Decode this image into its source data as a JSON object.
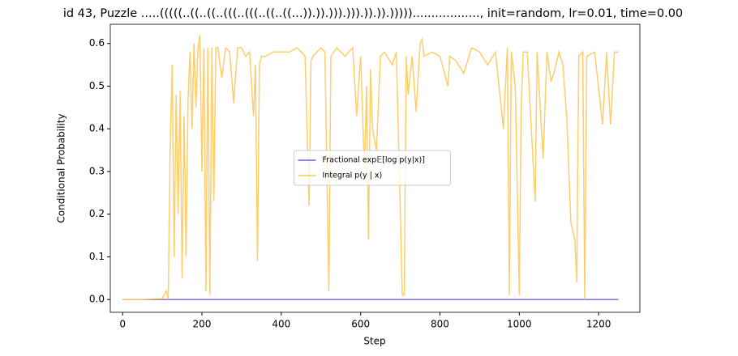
{
  "chart_data": {
    "type": "line",
    "title": "id 43, Puzzle .....(((((..((..((..(((..(((..((..((...)).)).))).))).)).)).))))).................., init=random, lr=0.01, time=0.00",
    "x_label": "Step",
    "y_label": "Conditional Probability",
    "xlim": [
      -31,
      1304
    ],
    "ylim": [
      -0.03,
      0.645
    ],
    "xticks": [
      0,
      200,
      400,
      600,
      800,
      1000,
      1200
    ],
    "yticks": [
      {
        "value": 0,
        "label": "0.0"
      },
      0.1,
      0.2,
      0.3,
      0.4,
      0.5,
      0.6
    ],
    "legend": "center",
    "series": [
      {
        "name": "Fractional exp𝔼[log p(y|x)]",
        "color": "#6464f0",
        "x": [
          0,
          1250
        ],
        "values": [
          0,
          0
        ]
      },
      {
        "name": "Integral p(y | x)",
        "color": "#ffc85a",
        "x": [
          0,
          50,
          100,
          110,
          115,
          120,
          125,
          130,
          135,
          140,
          145,
          150,
          155,
          160,
          165,
          170,
          175,
          180,
          185,
          190,
          195,
          200,
          205,
          210,
          215,
          220,
          225,
          230,
          235,
          240,
          250,
          260,
          270,
          280,
          290,
          300,
          310,
          320,
          330,
          335,
          340,
          345,
          350,
          360,
          380,
          400,
          420,
          440,
          460,
          470,
          475,
          480,
          500,
          510,
          520,
          525,
          540,
          560,
          580,
          590,
          600,
          610,
          615,
          620,
          625,
          630,
          640,
          650,
          660,
          680,
          690,
          700,
          705,
          710,
          715,
          720,
          730,
          740,
          750,
          755,
          760,
          780,
          800,
          820,
          825,
          840,
          860,
          880,
          900,
          920,
          940,
          960,
          970,
          975,
          980,
          990,
          1000,
          1005,
          1010,
          1020,
          1040,
          1045,
          1060,
          1070,
          1080,
          1090,
          1100,
          1110,
          1120,
          1130,
          1140,
          1145,
          1150,
          1160,
          1165,
          1170,
          1190,
          1210,
          1220,
          1230,
          1240,
          1250
        ],
        "values": [
          0,
          0,
          0.002,
          0.02,
          0.0,
          0.36,
          0.55,
          0.1,
          0.48,
          0.2,
          0.49,
          0.05,
          0.43,
          0.1,
          0.47,
          0.58,
          0.4,
          0.6,
          0.45,
          0.59,
          0.62,
          0.3,
          0.59,
          0.02,
          0.59,
          0.01,
          0.59,
          0.23,
          0.59,
          0.59,
          0.52,
          0.59,
          0.58,
          0.46,
          0.59,
          0.59,
          0.57,
          0.58,
          0.43,
          0.55,
          0.09,
          0.55,
          0.57,
          0.57,
          0.58,
          0.58,
          0.58,
          0.59,
          0.57,
          0.22,
          0.56,
          0.57,
          0.59,
          0.58,
          0.02,
          0.57,
          0.59,
          0.57,
          0.59,
          0.43,
          0.57,
          0.3,
          0.5,
          0.14,
          0.54,
          0.4,
          0.35,
          0.57,
          0.58,
          0.55,
          0.58,
          0.21,
          0.01,
          0.01,
          0.57,
          0.48,
          0.57,
          0.44,
          0.6,
          0.61,
          0.57,
          0.58,
          0.57,
          0.5,
          0.57,
          0.56,
          0.53,
          0.59,
          0.58,
          0.55,
          0.58,
          0.4,
          0.59,
          0.01,
          0.58,
          0.5,
          0.01,
          0.45,
          0.58,
          0.58,
          0.23,
          0.58,
          0.33,
          0.58,
          0.51,
          0.54,
          0.58,
          0.55,
          0.42,
          0.18,
          0.14,
          0.04,
          0.57,
          0.58,
          0.0,
          0.57,
          0.58,
          0.41,
          0.58,
          0.41,
          0.58,
          0.58
        ]
      }
    ]
  }
}
